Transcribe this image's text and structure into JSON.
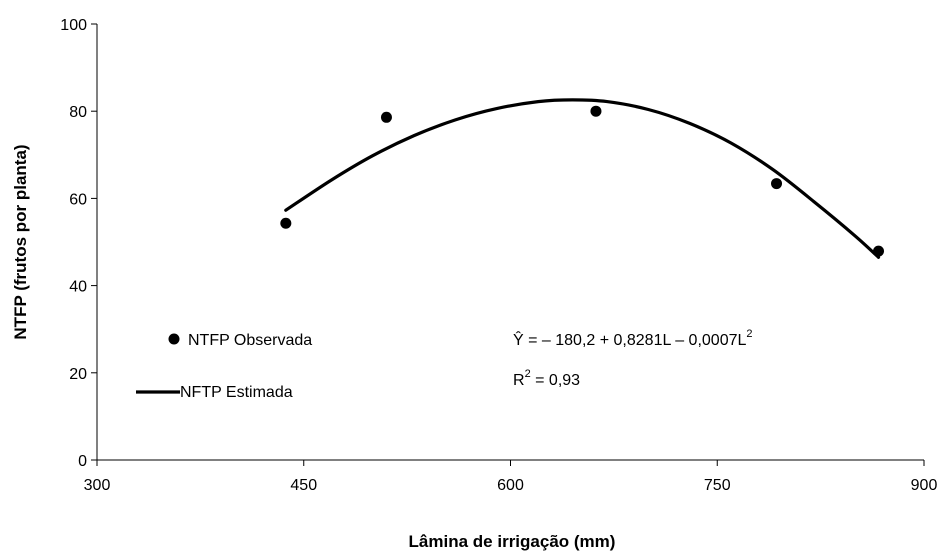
{
  "chart_data": {
    "type": "scatter",
    "xlabel": "Lâmina de irrigação (mm)",
    "ylabel": "NTFP (frutos por planta)",
    "xlim": [
      300,
      900
    ],
    "ylim": [
      0,
      100
    ],
    "xticks": [
      "300",
      "450",
      "600",
      "750",
      "900"
    ],
    "yticks": [
      "0",
      "20",
      "40",
      "60",
      "80",
      "100"
    ],
    "grid": false,
    "legend_position": "left-bottom",
    "series": [
      {
        "name": "NTFP Observada",
        "kind": "points",
        "color": "#000000",
        "points": [
          {
            "x": 437,
            "y": 54.3
          },
          {
            "x": 510,
            "y": 78.6
          },
          {
            "x": 662,
            "y": 80.0
          },
          {
            "x": 793,
            "y": 63.4
          },
          {
            "x": 867,
            "y": 47.9
          }
        ]
      },
      {
        "name": "NFTP Estimada",
        "kind": "curve",
        "color": "#000000",
        "points": [
          {
            "x": 437,
            "y": 57.3
          },
          {
            "x": 470,
            "y": 64.2
          },
          {
            "x": 500,
            "y": 69.8
          },
          {
            "x": 530,
            "y": 74.4
          },
          {
            "x": 560,
            "y": 78.0
          },
          {
            "x": 590,
            "y": 80.6
          },
          {
            "x": 620,
            "y": 82.2
          },
          {
            "x": 645,
            "y": 82.6
          },
          {
            "x": 670,
            "y": 82.2
          },
          {
            "x": 700,
            "y": 80.4
          },
          {
            "x": 730,
            "y": 77.2
          },
          {
            "x": 760,
            "y": 72.7
          },
          {
            "x": 790,
            "y": 66.7
          },
          {
            "x": 820,
            "y": 59.3
          },
          {
            "x": 850,
            "y": 51.4
          },
          {
            "x": 867,
            "y": 46.5
          }
        ]
      }
    ],
    "annotations": {
      "equation": {
        "yhat": "Ŷ",
        "body": " = – 180,2 + 0,8281L – 0,0007L",
        "sup": "2"
      },
      "r2": {
        "r": "R",
        "sup": "2",
        "body": " = 0,93"
      }
    }
  }
}
